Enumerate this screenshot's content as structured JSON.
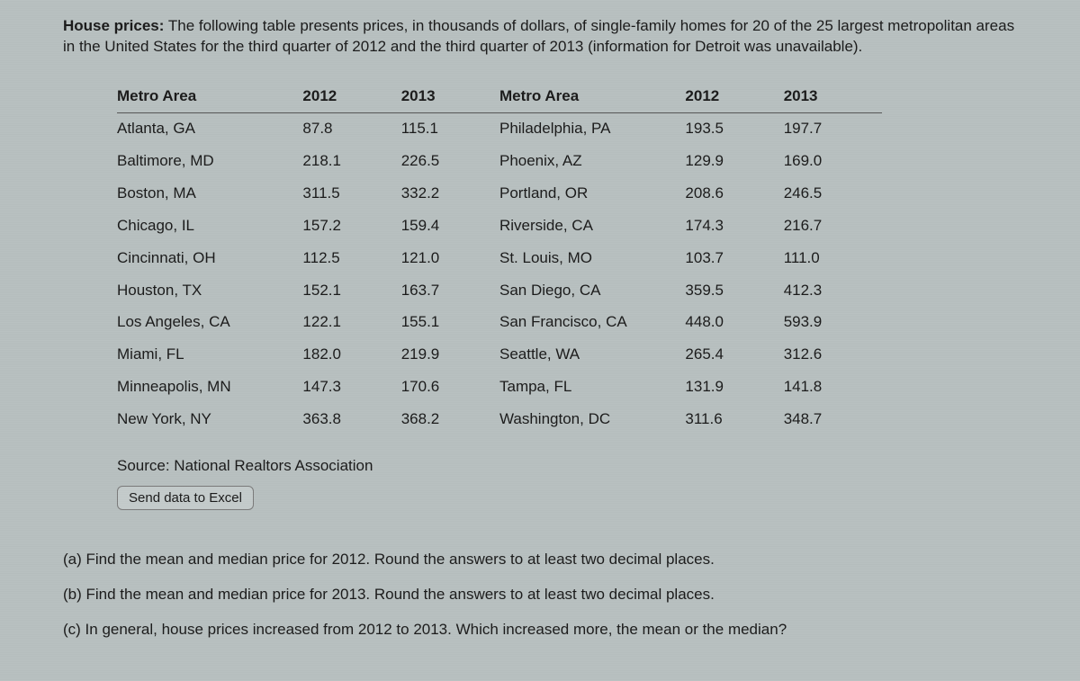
{
  "intro": {
    "label": "House prices:",
    "text": " The following table presents prices, in thousands of dollars, of single-family homes for 20 of the 25 largest metropolitan areas in the United States for the third quarter of 2012 and the third quarter of 2013 (information for Detroit was unavailable)."
  },
  "table": {
    "headers": {
      "area1": "Metro Area",
      "y2012_1": "2012",
      "y2013_1": "2013",
      "area2": "Metro Area",
      "y2012_2": "2012",
      "y2013_2": "2013"
    },
    "rows": [
      {
        "a1": "Atlanta, GA",
        "v12a": "87.8",
        "v13a": "115.1",
        "a2": "Philadelphia, PA",
        "v12b": "193.5",
        "v13b": "197.7"
      },
      {
        "a1": "Baltimore, MD",
        "v12a": "218.1",
        "v13a": "226.5",
        "a2": "Phoenix, AZ",
        "v12b": "129.9",
        "v13b": "169.0"
      },
      {
        "a1": "Boston, MA",
        "v12a": "311.5",
        "v13a": "332.2",
        "a2": "Portland, OR",
        "v12b": "208.6",
        "v13b": "246.5"
      },
      {
        "a1": "Chicago, IL",
        "v12a": "157.2",
        "v13a": "159.4",
        "a2": "Riverside, CA",
        "v12b": "174.3",
        "v13b": "216.7"
      },
      {
        "a1": "Cincinnati, OH",
        "v12a": "112.5",
        "v13a": "121.0",
        "a2": "St. Louis, MO",
        "v12b": "103.7",
        "v13b": "111.0"
      },
      {
        "a1": "Houston, TX",
        "v12a": "152.1",
        "v13a": "163.7",
        "a2": "San Diego, CA",
        "v12b": "359.5",
        "v13b": "412.3"
      },
      {
        "a1": "Los Angeles, CA",
        "v12a": "122.1",
        "v13a": "155.1",
        "a2": "San Francisco, CA",
        "v12b": "448.0",
        "v13b": "593.9"
      },
      {
        "a1": "Miami, FL",
        "v12a": "182.0",
        "v13a": "219.9",
        "a2": "Seattle, WA",
        "v12b": "265.4",
        "v13b": "312.6"
      },
      {
        "a1": "Minneapolis, MN",
        "v12a": "147.3",
        "v13a": "170.6",
        "a2": "Tampa, FL",
        "v12b": "131.9",
        "v13b": "141.8"
      },
      {
        "a1": "New York, NY",
        "v12a": "363.8",
        "v13a": "368.2",
        "a2": "Washington, DC",
        "v12b": "311.6",
        "v13b": "348.7"
      }
    ]
  },
  "source": "Source: National Realtors Association",
  "button": "Send data to Excel",
  "questions": {
    "a": "(a) Find the mean and median price for 2012. Round the answers to at least two decimal places.",
    "b": "(b) Find the mean and median price for 2013. Round the answers to at least two decimal places.",
    "c": "(c) In general, house prices increased from 2012 to 2013. Which increased more, the mean or the median?"
  },
  "style": {
    "background": "#b8c0c0",
    "text_color": "#1a1a1a",
    "header_border": "#555",
    "button_bg": "#c4cbcb",
    "button_border": "#7a7a7a",
    "font_family": "Arial",
    "base_fontsize": 17
  }
}
